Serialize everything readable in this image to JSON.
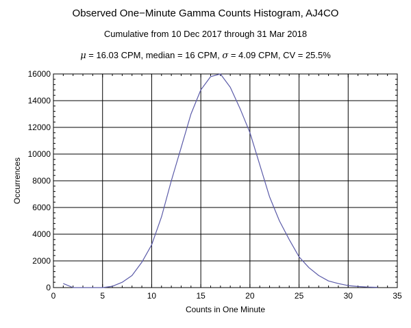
{
  "chart_data": {
    "type": "line",
    "title": "Observed One−Minute Gamma Counts Histogram, AJ4CO",
    "subtitle": "Cumulative from 10 Dec 2017 through 31 Mar 2018",
    "stats": {
      "mu_symbol": "μ",
      "mu_text": " = 16.03 CPM,   median = 16 CPM,   ",
      "sigma_symbol": "σ",
      "sigma_text": " = 4.09 CPM,   CV = 25.5%"
    },
    "xlabel": "Counts in One Minute",
    "ylabel": "Occurrences",
    "xlim": [
      0,
      35
    ],
    "ylim": [
      0,
      16000
    ],
    "xticks": [
      0,
      5,
      10,
      15,
      20,
      25,
      30,
      35
    ],
    "yticks": [
      0,
      2000,
      4000,
      6000,
      8000,
      10000,
      12000,
      14000,
      16000
    ],
    "grid": true,
    "line_color": "#5a5aa8",
    "x": [
      1,
      2,
      3,
      4,
      5,
      6,
      7,
      8,
      9,
      10,
      11,
      12,
      13,
      14,
      15,
      16,
      17,
      18,
      19,
      20,
      21,
      22,
      23,
      24,
      25,
      26,
      27,
      28,
      29,
      30,
      31,
      32,
      33
    ],
    "y": [
      300,
      0,
      0,
      0,
      0,
      100,
      400,
      900,
      1900,
      3200,
      5300,
      8000,
      10500,
      13000,
      14800,
      15800,
      16000,
      15000,
      13400,
      11600,
      9200,
      6800,
      5000,
      3600,
      2300,
      1500,
      900,
      500,
      300,
      150,
      80,
      40,
      20
    ]
  }
}
